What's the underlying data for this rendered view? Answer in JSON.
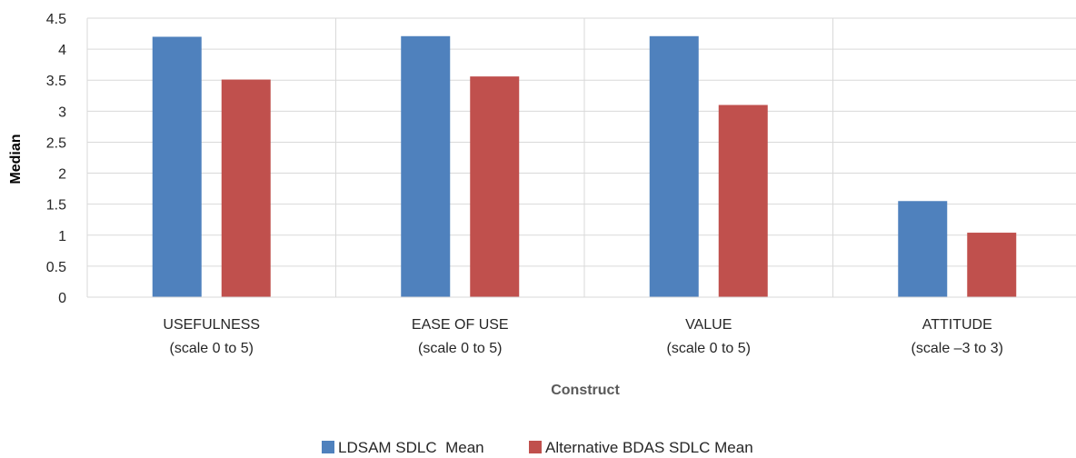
{
  "chart_data": {
    "type": "bar",
    "title": "",
    "xlabel": "Construct",
    "ylabel": "Median",
    "categories": [
      [
        "USEFULNESS",
        "(scale 0 to 5)"
      ],
      [
        "EASE OF USE",
        "(scale 0 to 5)"
      ],
      [
        "VALUE",
        "(scale 0 to 5)"
      ],
      [
        "ATTITUDE",
        "(scale –3 to 3)"
      ]
    ],
    "series": [
      {
        "name": "LDSAM SDLC  Mean",
        "color": "#4F81BD",
        "values": [
          4.2,
          4.21,
          4.21,
          1.55
        ]
      },
      {
        "name": "Alternative BDAS SDLC Mean",
        "color": "#C0504D",
        "values": [
          3.51,
          3.56,
          3.1,
          1.04
        ]
      }
    ],
    "ylim": [
      0,
      4.5
    ],
    "yticks": [
      "0",
      "0.5",
      "1",
      "1.5",
      "2",
      "2.5",
      "3",
      "3.5",
      "4",
      "4.5"
    ],
    "grid": true,
    "legend_position": "bottom"
  }
}
